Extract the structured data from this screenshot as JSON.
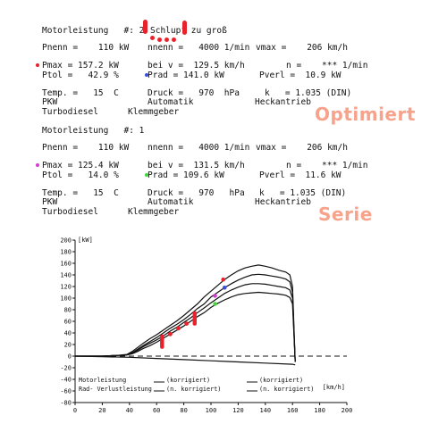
{
  "colors": {
    "red": "#e8222c",
    "blue": "#3a4fd6",
    "magenta": "#d23cd2",
    "green": "#44d63a",
    "annotation": "#f7a38c"
  },
  "optimiert": {
    "title": "Motorleistung   #: 2",
    "note": "Schlupf zu groß",
    "pnenn": "Pnenn =    110 kW",
    "nnenn": "nnenn =   4000 1/min",
    "vmax": "vmax =    206 km/h",
    "pmax": "Pmax = 157.2 kW",
    "bei_v": "bei v =  129.5 km/h",
    "n": "n =    *** 1/min",
    "ptol": "Ptol =   42.9 %",
    "prad": "Prad = 141.0 kW",
    "pverl": "Pverl =  10.9 kW",
    "temp": "Temp. =   15  C",
    "druck": "Druck =   970  hPa",
    "k": "k   = 1.035 (DIN)",
    "pkw": "PKW",
    "automatik": "Automatik",
    "heckantrieb": "Heckantrieb",
    "turbodiesel": "Turbodiesel",
    "klemmgeber": "Klemmgeber",
    "annotation": "Optimiert"
  },
  "serie": {
    "title": "Motorleistung   #: 1",
    "pnenn": "Pnenn =    110 kW",
    "nnenn": "nnenn =   4000 1/min",
    "vmax": "vmax =    206 km/h",
    "pmax": "Pmax = 125.4 kW",
    "bei_v": "bei v =  131.5 km/h",
    "n": "n =    *** 1/min",
    "ptol": "Ptol =   14.0 %",
    "prad": "Prad = 109.6 kW",
    "pverl": "Pverl =  11.6 kW",
    "temp": "Temp. =   15  C",
    "druck": "Druck =   970   hPa",
    "k": "k   = 1.035 (DIN)",
    "pkw": "PKW",
    "automatik": "Automatik",
    "heckantrieb": "Heckantrieb",
    "turbodiesel": "Turbodiesel",
    "klemmgeber": "Klemmgeber",
    "annotation": "Serie"
  },
  "chart_data": {
    "type": "line",
    "ylabel": "[kW]",
    "xlabel": "[km/h]",
    "xlim": [
      0,
      200
    ],
    "ylim": [
      -80,
      200
    ],
    "x_ticks": [
      0,
      20,
      40,
      60,
      80,
      100,
      120,
      140,
      160,
      180,
      200
    ],
    "y_ticks": [
      -80,
      -60,
      -40,
      -20,
      0,
      20,
      40,
      60,
      80,
      100,
      120,
      140,
      160,
      180,
      200
    ],
    "series": [
      {
        "x": [
          0,
          20,
          30,
          38,
          42,
          46,
          50,
          55,
          60,
          65,
          70,
          75,
          80,
          85,
          90,
          95,
          100,
          105,
          110,
          115,
          120,
          125,
          130,
          135,
          140,
          145,
          150,
          155,
          158,
          160,
          162
        ],
        "values": [
          0,
          0,
          1,
          3,
          8,
          15,
          22,
          30,
          37,
          45,
          53,
          61,
          70,
          80,
          90,
          102,
          112,
          122,
          132,
          140,
          147,
          152,
          155,
          157,
          155,
          152,
          148,
          145,
          140,
          120,
          -10
        ]
      },
      {
        "x": [
          0,
          20,
          30,
          38,
          42,
          46,
          50,
          55,
          60,
          65,
          70,
          75,
          80,
          85,
          90,
          95,
          100,
          105,
          110,
          115,
          120,
          125,
          130,
          135,
          140,
          145,
          150,
          155,
          158,
          160,
          162
        ],
        "values": [
          0,
          0,
          1,
          2,
          6,
          12,
          18,
          25,
          32,
          40,
          48,
          55,
          63,
          72,
          82,
          90,
          102,
          110,
          118,
          125,
          131,
          136,
          140,
          141,
          140,
          138,
          136,
          133,
          128,
          110,
          -10
        ]
      },
      {
        "x": [
          0,
          20,
          30,
          38,
          42,
          46,
          50,
          55,
          60,
          65,
          70,
          75,
          80,
          85,
          90,
          95,
          100,
          105,
          110,
          115,
          120,
          125,
          130,
          135,
          140,
          145,
          150,
          155,
          158,
          160,
          162
        ],
        "values": [
          0,
          0,
          1,
          2,
          5,
          10,
          16,
          22,
          28,
          35,
          43,
          50,
          58,
          66,
          75,
          83,
          92,
          100,
          108,
          114,
          119,
          123,
          125,
          125,
          124,
          122,
          120,
          118,
          114,
          100,
          -10
        ]
      },
      {
        "x": [
          0,
          20,
          30,
          38,
          42,
          46,
          50,
          55,
          60,
          65,
          70,
          75,
          80,
          85,
          90,
          95,
          100,
          105,
          110,
          115,
          120,
          125,
          130,
          135,
          140,
          145,
          150,
          155,
          158,
          160,
          162
        ],
        "values": [
          0,
          0,
          1,
          2,
          4,
          8,
          13,
          18,
          24,
          31,
          38,
          45,
          52,
          60,
          68,
          75,
          84,
          91,
          97,
          102,
          106,
          108,
          109,
          110,
          109,
          108,
          107,
          105,
          101,
          90,
          -10
        ]
      },
      {
        "x": [
          0,
          20,
          40,
          60,
          80,
          100,
          120,
          140,
          160,
          162
        ],
        "values": [
          0,
          -1,
          -2,
          -4,
          -6,
          -8,
          -10,
          -12,
          -14,
          -15
        ]
      }
    ],
    "reference_line": {
      "y": 0,
      "style": "dashed"
    },
    "markers": [
      {
        "x": 109.0,
        "y": 132,
        "color": "red"
      },
      {
        "x": 103.0,
        "y": 104,
        "color": "magenta"
      },
      {
        "x": 103.0,
        "y": 90,
        "color": "green"
      },
      {
        "x": 110.0,
        "y": 118,
        "color": "blue"
      }
    ],
    "legend": {
      "row1_left": "Motorleistung",
      "row1_mid": "(korrigiert)",
      "row1_right": "(korrigiert)",
      "row2_left": "Rad- Verlustleistung",
      "row2_mid": "(n. korrigiert)",
      "row2_right": "(n. korrigiert)"
    }
  }
}
